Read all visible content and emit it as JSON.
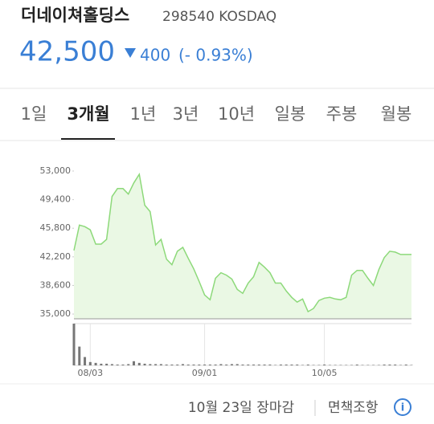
{
  "header": {
    "name": "더네이쳐홀딩스",
    "code": "298540 KOSDAQ",
    "price": "42,500",
    "change": "400",
    "change_pct": "(- 0.93%)"
  },
  "tabs": [
    "1일",
    "3개월",
    "1년",
    "3년",
    "10년",
    "일봉",
    "주봉",
    "월봉"
  ],
  "chart_data": {
    "type": "line",
    "color": "#8dd97a",
    "fill": "#eaf8e4",
    "categories": [
      null,
      null,
      null,
      "08/03",
      null,
      null,
      null,
      null,
      null,
      null,
      null,
      null,
      null,
      null,
      null,
      null,
      null,
      null,
      null,
      null,
      null,
      null,
      null,
      null,
      "09/01",
      null,
      null,
      null,
      null,
      null,
      null,
      null,
      null,
      null,
      null,
      null,
      null,
      null,
      null,
      null,
      null,
      null,
      null,
      null,
      null,
      null,
      "10/05",
      null,
      null,
      null,
      null,
      null,
      null,
      null,
      null,
      null,
      null,
      null,
      null,
      null,
      null,
      null,
      null
    ],
    "values": [
      43000,
      46200,
      46000,
      45600,
      43800,
      43800,
      44400,
      49800,
      50800,
      50800,
      50100,
      51500,
      52600,
      48700,
      47900,
      43700,
      44400,
      41900,
      41200,
      42900,
      43400,
      42000,
      40700,
      39100,
      37400,
      36800,
      39500,
      40200,
      39900,
      39400,
      38100,
      37600,
      38900,
      39700,
      41500,
      40900,
      40200,
      38900,
      38900,
      37900,
      37100,
      36500,
      36900,
      35300,
      35700,
      36700,
      37000,
      37100,
      36900,
      36800,
      37100,
      39900,
      40500,
      40500,
      39500,
      38600,
      40600,
      42100,
      42900,
      42800,
      42500,
      42500,
      42500
    ],
    "ylim": [
      34400,
      53000
    ],
    "yticks": [
      {
        "value": 35000,
        "label": "35,000"
      },
      {
        "value": 38600,
        "label": "38,600"
      },
      {
        "value": 42200,
        "label": "42,200"
      },
      {
        "value": 45800,
        "label": "45,800"
      },
      {
        "value": 49400,
        "label": "49,400"
      },
      {
        "value": 53000,
        "label": "53,000"
      }
    ],
    "volume": [
      100,
      45,
      20,
      8,
      6,
      4,
      4,
      3,
      2,
      2,
      3,
      10,
      6,
      4,
      3,
      3,
      3,
      2,
      2,
      2,
      3,
      2,
      2,
      2,
      2,
      2,
      2,
      3,
      2,
      3,
      3,
      2,
      2,
      2,
      2,
      2,
      2,
      1,
      2,
      2,
      2,
      2,
      1,
      2,
      1,
      1,
      2,
      1,
      1,
      1,
      1,
      1,
      2,
      1,
      1,
      1,
      1,
      2,
      2,
      2,
      1,
      2,
      1
    ],
    "volume_color": "#777777",
    "volume_lim": [
      0,
      100
    ]
  },
  "footer": {
    "status": "10월 23일 장마감",
    "disclaimer": "면책조항"
  }
}
